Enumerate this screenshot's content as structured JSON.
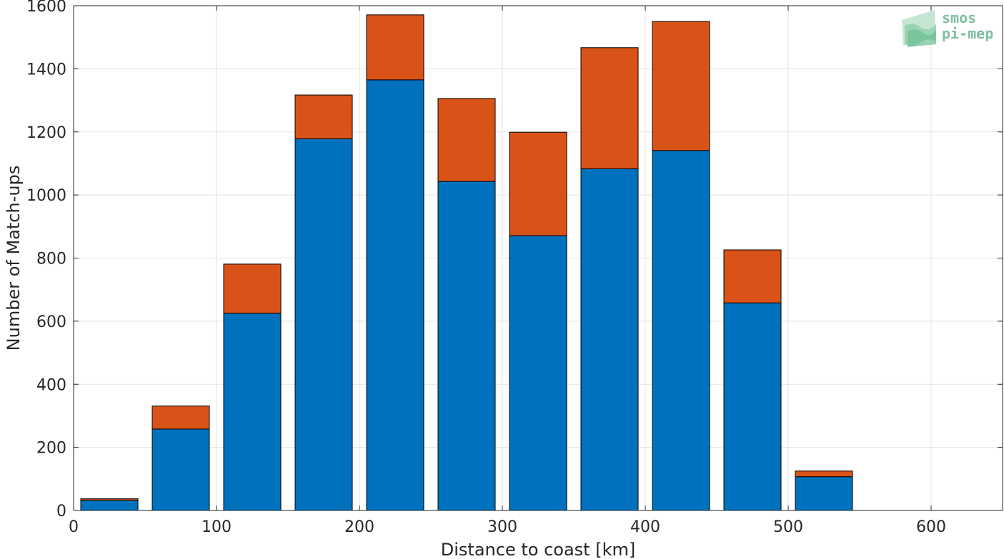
{
  "chart_data": {
    "type": "bar",
    "stacked": true,
    "xlabel": "Distance to coast [km]",
    "ylabel": "Number of Match-ups",
    "xlim": [
      0,
      650
    ],
    "ylim": [
      0,
      1600
    ],
    "x_ticks": [
      0,
      100,
      200,
      300,
      400,
      500,
      600
    ],
    "y_ticks": [
      0,
      200,
      400,
      600,
      800,
      1000,
      1200,
      1400,
      1600
    ],
    "grid": true,
    "legend": "none",
    "bar_width": 40,
    "x": [
      25,
      75,
      125,
      175,
      225,
      275,
      325,
      375,
      425,
      475,
      525
    ],
    "series": [
      {
        "color": "#0072bd",
        "values": [
          32,
          258,
          625,
          1178,
          1365,
          1043,
          871,
          1083,
          1141,
          658,
          107
        ]
      },
      {
        "color": "#d95319",
        "values": [
          5,
          73,
          156,
          139,
          206,
          263,
          328,
          384,
          409,
          168,
          18
        ]
      }
    ]
  },
  "logo": {
    "line1": "smos",
    "line2": "pi-mep",
    "color": "#7fbf9f"
  }
}
